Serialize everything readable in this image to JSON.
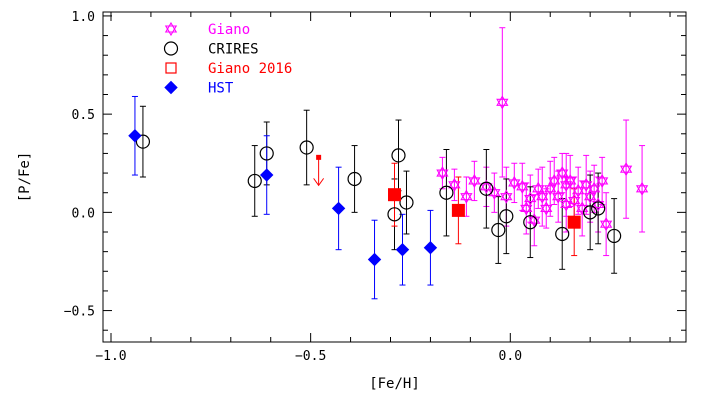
{
  "chart_data": {
    "type": "scatter",
    "xlabel": "[Fe/H]",
    "ylabel": "[P/Fe]",
    "xlim": [
      -1.02,
      0.44
    ],
    "ylim": [
      -0.66,
      1.02
    ],
    "xticks": [
      -1.0,
      -0.5,
      0.0
    ],
    "xtick_labels": [
      "−1.0",
      "−0.5",
      "0.0"
    ],
    "yticks": [
      -0.5,
      0.0,
      0.5,
      1.0
    ],
    "ytick_labels": [
      "−0.5",
      "0.0",
      "0.5",
      "1.0"
    ],
    "legend_position": "top-left",
    "series": [
      {
        "name": "Giano",
        "marker": "star-of-david-open",
        "color": "#ff00ff",
        "points": [
          {
            "x": -0.17,
            "y": 0.2,
            "err": 0.08
          },
          {
            "x": -0.14,
            "y": 0.14,
            "err": 0.08
          },
          {
            "x": -0.11,
            "y": 0.08,
            "err": 0.1
          },
          {
            "x": -0.09,
            "y": 0.16,
            "err": 0.1
          },
          {
            "x": -0.06,
            "y": 0.13,
            "err": 0.1
          },
          {
            "x": -0.04,
            "y": 0.1,
            "err": 0.1
          },
          {
            "x": -0.02,
            "y": 0.56,
            "err": 0.38
          },
          {
            "x": -0.01,
            "y": 0.08,
            "err": 0.15
          },
          {
            "x": 0.01,
            "y": 0.15,
            "err": 0.1
          },
          {
            "x": 0.03,
            "y": 0.13,
            "err": 0.12
          },
          {
            "x": 0.04,
            "y": 0.02,
            "err": 0.13
          },
          {
            "x": 0.05,
            "y": 0.07,
            "err": 0.12
          },
          {
            "x": 0.06,
            "y": -0.04,
            "err": 0.13
          },
          {
            "x": 0.07,
            "y": 0.12,
            "err": 0.1
          },
          {
            "x": 0.08,
            "y": 0.08,
            "err": 0.15
          },
          {
            "x": 0.09,
            "y": 0.02,
            "err": 0.1
          },
          {
            "x": 0.1,
            "y": 0.12,
            "err": 0.14
          },
          {
            "x": 0.11,
            "y": 0.16,
            "err": 0.12
          },
          {
            "x": 0.12,
            "y": 0.08,
            "err": 0.13
          },
          {
            "x": 0.13,
            "y": 0.2,
            "err": 0.1
          },
          {
            "x": 0.14,
            "y": 0.14,
            "err": 0.16
          },
          {
            "x": 0.14,
            "y": 0.04,
            "err": 0.14
          },
          {
            "x": 0.15,
            "y": 0.16,
            "err": 0.13
          },
          {
            "x": 0.16,
            "y": 0.06,
            "err": 0.12
          },
          {
            "x": 0.17,
            "y": 0.11,
            "err": 0.12
          },
          {
            "x": 0.18,
            "y": 0.02,
            "err": 0.14
          },
          {
            "x": 0.19,
            "y": 0.14,
            "err": 0.15
          },
          {
            "x": 0.2,
            "y": 0.08,
            "err": 0.13
          },
          {
            "x": 0.21,
            "y": 0.12,
            "err": 0.12
          },
          {
            "x": 0.22,
            "y": 0.04,
            "err": 0.14
          },
          {
            "x": 0.23,
            "y": 0.16,
            "err": 0.12
          },
          {
            "x": 0.24,
            "y": -0.06,
            "err": 0.16
          },
          {
            "x": 0.29,
            "y": 0.22,
            "err": 0.25
          },
          {
            "x": 0.33,
            "y": 0.12,
            "err": 0.22
          }
        ]
      },
      {
        "name": "CRIRES",
        "marker": "circle-open",
        "color": "#000000",
        "points": [
          {
            "x": -0.92,
            "y": 0.36,
            "err": 0.18
          },
          {
            "x": -0.64,
            "y": 0.16,
            "err": 0.18
          },
          {
            "x": -0.61,
            "y": 0.3,
            "err": 0.16
          },
          {
            "x": -0.51,
            "y": 0.33,
            "err": 0.19
          },
          {
            "x": -0.39,
            "y": 0.17,
            "err": 0.17
          },
          {
            "x": -0.29,
            "y": -0.01,
            "err": 0.18
          },
          {
            "x": -0.28,
            "y": 0.29,
            "err": 0.18
          },
          {
            "x": -0.26,
            "y": 0.05,
            "err": 0.16
          },
          {
            "x": -0.16,
            "y": 0.1,
            "err": 0.22
          },
          {
            "x": -0.06,
            "y": 0.12,
            "err": 0.2
          },
          {
            "x": -0.03,
            "y": -0.09,
            "err": 0.17
          },
          {
            "x": -0.01,
            "y": -0.02,
            "err": 0.19
          },
          {
            "x": 0.05,
            "y": -0.05,
            "err": 0.18
          },
          {
            "x": 0.13,
            "y": -0.11,
            "err": 0.18
          },
          {
            "x": 0.2,
            "y": 0.0,
            "err": 0.19
          },
          {
            "x": 0.22,
            "y": 0.02,
            "err": 0.18
          },
          {
            "x": 0.26,
            "y": -0.12,
            "err": 0.19
          }
        ]
      },
      {
        "name": "Giano 2016",
        "marker": "square-filled",
        "legend_marker": "square-open",
        "color": "#ff0000",
        "points": [
          {
            "x": -0.29,
            "y": 0.09,
            "err": 0.16
          },
          {
            "x": -0.13,
            "y": 0.01,
            "err": 0.17
          },
          {
            "x": 0.16,
            "y": -0.05,
            "err": 0.17
          }
        ],
        "upper_limit": {
          "x": -0.48,
          "y": 0.28
        }
      },
      {
        "name": "HST",
        "marker": "diamond-filled",
        "color": "#0000ff",
        "points": [
          {
            "x": -0.94,
            "y": 0.39,
            "err": 0.2
          },
          {
            "x": -0.61,
            "y": 0.19,
            "err": 0.2
          },
          {
            "x": -0.43,
            "y": 0.02,
            "err": 0.21
          },
          {
            "x": -0.34,
            "y": -0.24,
            "err": 0.2
          },
          {
            "x": -0.27,
            "y": -0.19,
            "err": 0.18
          },
          {
            "x": -0.2,
            "y": -0.18,
            "err": 0.19
          }
        ]
      }
    ]
  }
}
